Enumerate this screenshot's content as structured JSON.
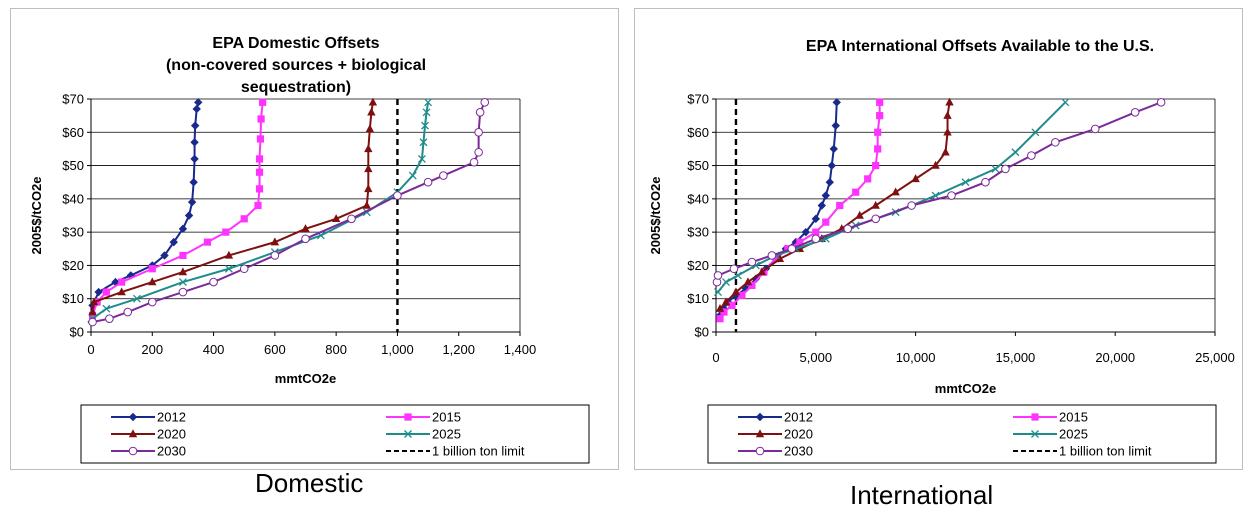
{
  "captions": {
    "left": "Domestic",
    "right": "International"
  },
  "colors": {
    "2012": "#1a2a8c",
    "2015": "#ff33ff",
    "2020": "#7f1010",
    "2025": "#1f8c8c",
    "2030": "#7a2a9a",
    "limit": "#000000"
  },
  "chart_data": [
    {
      "type": "line",
      "title": "EPA Domestic Offsets (non-covered sources + biological sequestration)",
      "title_lines": [
        "EPA Domestic Offsets",
        "(non-covered sources + biological",
        "sequestration)"
      ],
      "xlabel": "mmtCO2e",
      "ylabel": "2005$/tCO2e",
      "xlim": [
        0,
        1400
      ],
      "ylim": [
        0,
        70
      ],
      "x_ticks": [
        "0",
        "200",
        "400",
        "600",
        "800",
        "1,000",
        "1,200",
        "1,400"
      ],
      "y_ticks": [
        "$0",
        "$10",
        "$20",
        "$30",
        "$40",
        "$50",
        "$60",
        "$70"
      ],
      "grid": "horizontal",
      "legend_position": "bottom",
      "series": [
        {
          "name": "2012",
          "marker": "diamond",
          "points": [
            [
              2,
              3
            ],
            [
              5,
              8
            ],
            [
              25,
              12
            ],
            [
              80,
              15
            ],
            [
              130,
              17
            ],
            [
              200,
              20
            ],
            [
              240,
              23
            ],
            [
              270,
              27
            ],
            [
              300,
              31
            ],
            [
              320,
              35
            ],
            [
              330,
              39
            ],
            [
              335,
              45
            ],
            [
              338,
              52
            ],
            [
              338,
              57
            ],
            [
              340,
              62
            ],
            [
              345,
              67
            ],
            [
              350,
              69
            ]
          ]
        },
        {
          "name": "2015",
          "marker": "square",
          "points": [
            [
              5,
              5
            ],
            [
              20,
              9
            ],
            [
              50,
              12
            ],
            [
              100,
              15
            ],
            [
              200,
              19
            ],
            [
              300,
              23
            ],
            [
              380,
              27
            ],
            [
              440,
              30
            ],
            [
              500,
              34
            ],
            [
              545,
              38
            ],
            [
              550,
              43
            ],
            [
              550,
              48
            ],
            [
              550,
              52
            ],
            [
              553,
              58
            ],
            [
              555,
              64
            ],
            [
              560,
              69
            ]
          ]
        },
        {
          "name": "2020",
          "marker": "triangle",
          "points": [
            [
              5,
              6
            ],
            [
              10,
              9
            ],
            [
              100,
              12
            ],
            [
              200,
              15
            ],
            [
              300,
              18
            ],
            [
              450,
              23
            ],
            [
              600,
              27
            ],
            [
              700,
              31
            ],
            [
              800,
              34
            ],
            [
              900,
              38
            ],
            [
              905,
              43
            ],
            [
              905,
              49
            ],
            [
              905,
              55
            ],
            [
              910,
              61
            ],
            [
              915,
              66
            ],
            [
              920,
              69
            ]
          ]
        },
        {
          "name": "2025",
          "marker": "x",
          "points": [
            [
              5,
              4
            ],
            [
              50,
              7
            ],
            [
              150,
              10
            ],
            [
              300,
              15
            ],
            [
              450,
              19
            ],
            [
              600,
              24
            ],
            [
              750,
              29
            ],
            [
              900,
              36
            ],
            [
              1000,
              42
            ],
            [
              1050,
              47
            ],
            [
              1080,
              52
            ],
            [
              1085,
              57
            ],
            [
              1090,
              62
            ],
            [
              1095,
              66
            ],
            [
              1100,
              69
            ]
          ]
        },
        {
          "name": "2030",
          "marker": "circle",
          "points": [
            [
              5,
              3
            ],
            [
              60,
              4
            ],
            [
              120,
              6
            ],
            [
              200,
              9
            ],
            [
              300,
              12
            ],
            [
              400,
              15
            ],
            [
              500,
              19
            ],
            [
              600,
              23
            ],
            [
              700,
              28
            ],
            [
              850,
              34
            ],
            [
              1000,
              41
            ],
            [
              1100,
              45
            ],
            [
              1150,
              47
            ],
            [
              1250,
              51
            ],
            [
              1265,
              54
            ],
            [
              1265,
              60
            ],
            [
              1270,
              66
            ],
            [
              1285,
              69
            ]
          ]
        }
      ],
      "reference_line": {
        "name": "1 billion  ton limit",
        "x": 1000,
        "style": "dashed"
      }
    },
    {
      "type": "line",
      "title": "EPA International Offsets Available to the U.S.",
      "title_lines": [
        "EPA International Offsets Available to the U.S."
      ],
      "xlabel": "mmtCO2e",
      "ylabel": "2005$/tCO2e",
      "xlim": [
        0,
        25000
      ],
      "ylim": [
        0,
        70
      ],
      "x_ticks": [
        "0",
        "5,000",
        "10,000",
        "15,000",
        "20,000",
        "25,000"
      ],
      "y_ticks": [
        "$0",
        "$10",
        "$20",
        "$30",
        "$40",
        "$50",
        "$60",
        "$70"
      ],
      "grid": "horizontal",
      "legend_position": "bottom",
      "series": [
        {
          "name": "2012",
          "marker": "diamond",
          "points": [
            [
              200,
              5
            ],
            [
              400,
              7
            ],
            [
              600,
              9
            ],
            [
              1000,
              11
            ],
            [
              1500,
              13
            ],
            [
              2000,
              16
            ],
            [
              2500,
              19
            ],
            [
              3000,
              22
            ],
            [
              3500,
              25
            ],
            [
              4000,
              27
            ],
            [
              4500,
              30
            ],
            [
              5000,
              34
            ],
            [
              5300,
              38
            ],
            [
              5500,
              41
            ],
            [
              5700,
              45
            ],
            [
              5800,
              50
            ],
            [
              5900,
              55
            ],
            [
              6000,
              62
            ],
            [
              6050,
              69
            ]
          ]
        },
        {
          "name": "2015",
          "marker": "square",
          "points": [
            [
              200,
              4
            ],
            [
              400,
              6
            ],
            [
              800,
              8
            ],
            [
              1300,
              11
            ],
            [
              1800,
              14
            ],
            [
              2400,
              18
            ],
            [
              3000,
              22
            ],
            [
              3600,
              25
            ],
            [
              4200,
              27
            ],
            [
              5000,
              30
            ],
            [
              5500,
              33
            ],
            [
              6200,
              38
            ],
            [
              7000,
              42
            ],
            [
              7600,
              46
            ],
            [
              8000,
              50
            ],
            [
              8100,
              55
            ],
            [
              8100,
              60
            ],
            [
              8200,
              65
            ],
            [
              8200,
              69
            ]
          ]
        },
        {
          "name": "2020",
          "marker": "triangle",
          "points": [
            [
              200,
              7
            ],
            [
              500,
              9
            ],
            [
              1000,
              12
            ],
            [
              1600,
              15
            ],
            [
              2300,
              18
            ],
            [
              3200,
              22
            ],
            [
              4200,
              25
            ],
            [
              5300,
              28
            ],
            [
              6300,
              31
            ],
            [
              7200,
              35
            ],
            [
              8000,
              38
            ],
            [
              9000,
              42
            ],
            [
              10000,
              46
            ],
            [
              11000,
              50
            ],
            [
              11500,
              54
            ],
            [
              11600,
              60
            ],
            [
              11600,
              65
            ],
            [
              11700,
              69
            ]
          ]
        },
        {
          "name": "2025",
          "marker": "x",
          "points": [
            [
              100,
              12
            ],
            [
              500,
              15
            ],
            [
              1100,
              17
            ],
            [
              2000,
              20
            ],
            [
              3000,
              23
            ],
            [
              4000,
              25
            ],
            [
              5500,
              28
            ],
            [
              7000,
              32
            ],
            [
              9000,
              36
            ],
            [
              11000,
              41
            ],
            [
              12500,
              45
            ],
            [
              14000,
              49
            ],
            [
              15000,
              54
            ],
            [
              16000,
              60
            ],
            [
              17500,
              69
            ]
          ]
        },
        {
          "name": "2030",
          "marker": "circle",
          "points": [
            [
              50,
              15
            ],
            [
              100,
              17
            ],
            [
              900,
              19
            ],
            [
              1800,
              21
            ],
            [
              2800,
              23
            ],
            [
              3800,
              25
            ],
            [
              5000,
              28
            ],
            [
              6600,
              31
            ],
            [
              8000,
              34
            ],
            [
              9800,
              38
            ],
            [
              11800,
              41
            ],
            [
              13500,
              45
            ],
            [
              14500,
              49
            ],
            [
              15800,
              53
            ],
            [
              17000,
              57
            ],
            [
              19000,
              61
            ],
            [
              21000,
              66
            ],
            [
              22300,
              69
            ]
          ]
        }
      ],
      "reference_line": {
        "name": "1 billion  ton limit",
        "x": 1000,
        "style": "dashed"
      }
    }
  ]
}
